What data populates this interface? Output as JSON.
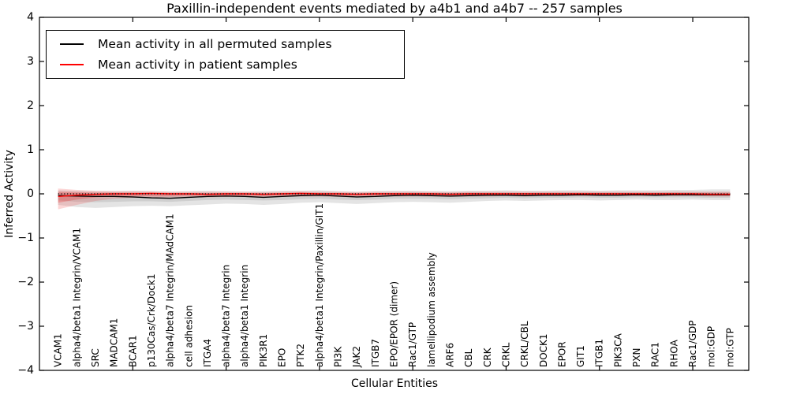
{
  "title": "Paxillin-independent events mediated by a4b1 and a4b7 -- 257 samples",
  "legend": {
    "items": [
      {
        "label": "Mean activity in all permuted samples",
        "color": "#000000"
      },
      {
        "label": "Mean activity in patient samples",
        "color": "#ff0000"
      }
    ]
  },
  "chart_data": {
    "type": "line",
    "title": "Paxillin-independent events mediated by a4b1 and a4b7 -- 257 samples",
    "xlabel": "Cellular Entities",
    "ylabel": "Inferred Activity",
    "ylim": [
      -4,
      4
    ],
    "xlim": [
      0,
      38
    ],
    "grid": false,
    "legend_position": "upper left",
    "y_ticks": [
      {
        "value": 4,
        "label": "4"
      },
      {
        "value": 3,
        "label": "3"
      },
      {
        "value": 2,
        "label": "2"
      },
      {
        "value": 1,
        "label": "1"
      },
      {
        "value": 0,
        "label": "0"
      },
      {
        "value": -1,
        "label": "−1"
      },
      {
        "value": -2,
        "label": "−2"
      },
      {
        "value": -3,
        "label": "−3"
      },
      {
        "value": -4,
        "label": "−4"
      }
    ],
    "x_minor_ticks": [
      5,
      10,
      15,
      20,
      25,
      30,
      35
    ],
    "zero_reference_line": 0,
    "categories": [
      "VCAM1",
      "alpha4/beta1 Integrin/VCAM1",
      "SRC",
      "MADCAM1",
      "BCAR1",
      "p130Cas/Crk/Dock1",
      "alpha4/beta7 Integrin/MAdCAM1",
      "cell adhesion",
      "ITGA4",
      "alpha4/beta7 Integrin",
      "alpha4/beta1 Integrin",
      "PIK3R1",
      "EPO",
      "PTK2",
      "alpha4/beta1 Integrin/Paxillin/GIT1",
      "PI3K",
      "JAK2",
      "ITGB7",
      "EPO/EPOR (dimer)",
      "Rac1/GTP",
      "lamellipodium assembly",
      "ARF6",
      "CBL",
      "CRK",
      "CRKL",
      "CRKL/CBL",
      "DOCK1",
      "EPOR",
      "GIT1",
      "ITGB1",
      "PIK3CA",
      "PXN",
      "RAC1",
      "RHOA",
      "Rac1/GDP",
      "mol:GDP",
      "mol:GTP"
    ],
    "series": [
      {
        "name": "Mean activity in all permuted samples",
        "color": "#000000",
        "values": [
          -0.04,
          -0.05,
          -0.06,
          -0.06,
          -0.07,
          -0.09,
          -0.1,
          -0.08,
          -0.06,
          -0.05,
          -0.06,
          -0.08,
          -0.06,
          -0.04,
          -0.03,
          -0.05,
          -0.07,
          -0.06,
          -0.04,
          -0.03,
          -0.04,
          -0.05,
          -0.04,
          -0.03,
          -0.03,
          -0.04,
          -0.03,
          -0.03,
          -0.02,
          -0.03,
          -0.03,
          -0.02,
          -0.03,
          -0.02,
          -0.02,
          -0.02,
          -0.02
        ]
      },
      {
        "name": "Mean activity in patient samples",
        "color": "#ff0000",
        "values": [
          -0.06,
          -0.03,
          -0.01,
          0,
          0,
          0.01,
          0,
          0,
          -0.01,
          0,
          0,
          -0.01,
          0,
          0.01,
          0,
          0,
          -0.01,
          0,
          0,
          0,
          0,
          -0.01,
          0,
          0,
          0,
          0,
          0,
          0,
          0,
          0,
          0,
          0,
          0,
          0,
          0,
          -0.01,
          -0.01
        ]
      }
    ],
    "bands": [
      {
        "name": "permuted-band-outer",
        "color": "rgba(130,130,130,0.22)",
        "upper": [
          0.08,
          0.07,
          0.06,
          0.06,
          0.07,
          0.06,
          0.05,
          0.06,
          0.07,
          0.06,
          0.05,
          0.06,
          0.07,
          0.07,
          0.08,
          0.06,
          0.05,
          0.06,
          0.07,
          0.07,
          0.06,
          0.06,
          0.07,
          0.07,
          0.08,
          0.07,
          0.07,
          0.08,
          0.08,
          0.07,
          0.08,
          0.08,
          0.08,
          0.09,
          0.09,
          0.1,
          0.1
        ],
        "lower": [
          -0.25,
          -0.3,
          -0.32,
          -0.3,
          -0.28,
          -0.27,
          -0.28,
          -0.26,
          -0.24,
          -0.22,
          -0.23,
          -0.25,
          -0.23,
          -0.2,
          -0.19,
          -0.21,
          -0.23,
          -0.21,
          -0.19,
          -0.18,
          -0.19,
          -0.2,
          -0.18,
          -0.16,
          -0.15,
          -0.16,
          -0.15,
          -0.14,
          -0.14,
          -0.15,
          -0.14,
          -0.13,
          -0.14,
          -0.14,
          -0.13,
          -0.14,
          -0.14
        ]
      },
      {
        "name": "permuted-band-inner",
        "color": "rgba(130,130,130,0.22)",
        "upper": [
          0.03,
          0.02,
          0.02,
          0.02,
          0.02,
          0.01,
          0.01,
          0.02,
          0.02,
          0.02,
          0.01,
          0.02,
          0.02,
          0.03,
          0.03,
          0.02,
          0.01,
          0.02,
          0.02,
          0.03,
          0.02,
          0.02,
          0.03,
          0.03,
          0.03,
          0.02,
          0.03,
          0.03,
          0.03,
          0.03,
          0.03,
          0.03,
          0.03,
          0.04,
          0.04,
          0.04,
          0.04
        ],
        "lower": [
          -0.15,
          -0.18,
          -0.19,
          -0.18,
          -0.17,
          -0.17,
          -0.18,
          -0.16,
          -0.14,
          -0.13,
          -0.14,
          -0.15,
          -0.14,
          -0.12,
          -0.11,
          -0.13,
          -0.14,
          -0.13,
          -0.11,
          -0.11,
          -0.11,
          -0.12,
          -0.11,
          -0.1,
          -0.09,
          -0.1,
          -0.09,
          -0.09,
          -0.08,
          -0.09,
          -0.09,
          -0.08,
          -0.08,
          -0.08,
          -0.08,
          -0.09,
          -0.09
        ]
      },
      {
        "name": "patient-band-outer",
        "color": "rgba(240,50,50,0.20)",
        "upper": [
          0.12,
          0.09,
          0.07,
          0.06,
          0.06,
          0.06,
          0.05,
          0.05,
          0.05,
          0.05,
          0.05,
          0.04,
          0.05,
          0.06,
          0.05,
          0.05,
          0.04,
          0.05,
          0.05,
          0.05,
          0.05,
          0.04,
          0.05,
          0.05,
          0.05,
          0.05,
          0.05,
          0.05,
          0.05,
          0.05,
          0.05,
          0.05,
          0.05,
          0.05,
          0.05,
          0.05,
          0.05
        ],
        "lower": [
          -0.35,
          -0.25,
          -0.16,
          -0.11,
          -0.09,
          -0.08,
          -0.08,
          -0.07,
          -0.08,
          -0.07,
          -0.07,
          -0.08,
          -0.07,
          -0.06,
          -0.06,
          -0.07,
          -0.08,
          -0.07,
          -0.06,
          -0.06,
          -0.06,
          -0.07,
          -0.06,
          -0.06,
          -0.05,
          -0.06,
          -0.05,
          -0.05,
          -0.05,
          -0.05,
          -0.05,
          -0.05,
          -0.05,
          -0.05,
          -0.05,
          -0.06,
          -0.06
        ]
      },
      {
        "name": "patient-band-inner",
        "color": "rgba(235,40,40,0.28)",
        "upper": [
          0.05,
          0.04,
          0.03,
          0.03,
          0.03,
          0.03,
          0.02,
          0.02,
          0.02,
          0.02,
          0.02,
          0.02,
          0.02,
          0.03,
          0.02,
          0.02,
          0.02,
          0.02,
          0.02,
          0.02,
          0.02,
          0.02,
          0.02,
          0.02,
          0.02,
          0.02,
          0.02,
          0.02,
          0.02,
          0.02,
          0.02,
          0.02,
          0.02,
          0.02,
          0.02,
          0.02,
          0.02
        ],
        "lower": [
          -0.2,
          -0.13,
          -0.08,
          -0.06,
          -0.05,
          -0.05,
          -0.05,
          -0.04,
          -0.05,
          -0.04,
          -0.04,
          -0.05,
          -0.04,
          -0.03,
          -0.03,
          -0.04,
          -0.05,
          -0.04,
          -0.03,
          -0.03,
          -0.03,
          -0.04,
          -0.03,
          -0.03,
          -0.03,
          -0.03,
          -0.03,
          -0.03,
          -0.03,
          -0.03,
          -0.03,
          -0.03,
          -0.03,
          -0.03,
          -0.03,
          -0.04,
          -0.04
        ]
      }
    ]
  }
}
